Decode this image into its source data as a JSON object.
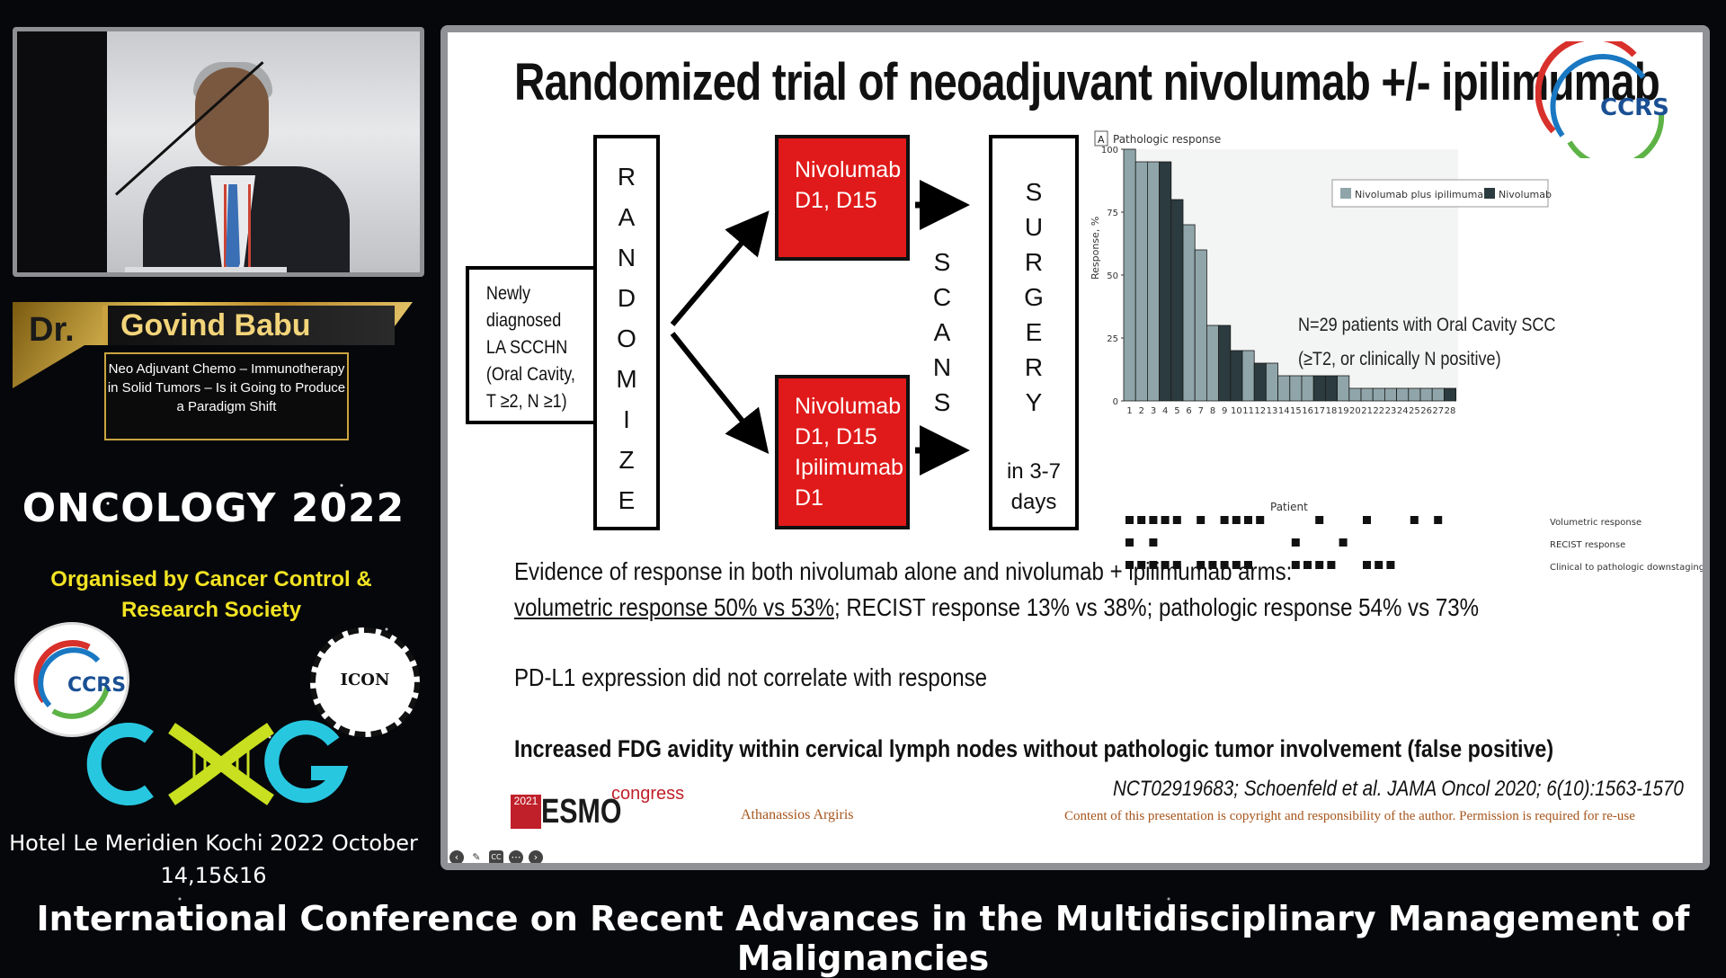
{
  "speaker": {
    "prefix": "Dr.",
    "name": "Govind Babu",
    "talk_title": "Neo Adjuvant Chemo – Immunotherapy in Solid Tumors – Is it Going to Produce a Paradigm Shift"
  },
  "event": {
    "name": "ONCOLOGY 2022",
    "organised_by": "Organised by   Cancer Control & Research Society",
    "logos": [
      "ccrs-logo",
      "icon-logo",
      "cxg-logo"
    ],
    "icon_logo_text": "ICON",
    "ccrs_text": "CCRS",
    "venue": "Hotel Le Meridien  Kochi  2022 October 14,15&16",
    "conference": "International Conference on Recent Advances in the Multidisciplinary Management of Malignancies"
  },
  "slide": {
    "title": "Randomized trial of neoadjuvant nivolumab +/- ipilimumab",
    "flow": {
      "newly_diagnosed": [
        "Newly",
        "diagnosed",
        "LA SCCHN",
        "(Oral Cavity,",
        "T ≥2, N ≥1)"
      ],
      "randomize_letters": [
        "R",
        "A",
        "N",
        "D",
        "O",
        "M",
        "I",
        "Z",
        "E"
      ],
      "arm1": [
        "Nivolumab",
        "D1, D15"
      ],
      "arm2": [
        "Nivolumab",
        "D1, D15",
        "Ipilimumab",
        "D1"
      ],
      "scans_letters": [
        "S",
        "C",
        "A",
        "N",
        "S"
      ],
      "surgery_letters": [
        "S",
        "U",
        "R",
        "G",
        "E",
        "R",
        "Y"
      ],
      "surgery_timing": [
        "in 3-7",
        "days"
      ]
    },
    "chart_label": "A",
    "chart_caption": "Pathologic response",
    "chart_note": [
      "N=29 patients with Oral Cavity SCC",
      "(≥T2, or clinically N positive)"
    ],
    "legend": [
      "Nivolumab plus ipilimumab",
      "Nivolumab"
    ],
    "response_rows": [
      "Volumetric response",
      "RECIST response",
      "Clinical to pathologic downstaging"
    ],
    "evidence_line1": "Evidence of response in both nivolumab alone and nivolumab + ipilimumab arms:",
    "evidence_line2a": "volumetric response 50% vs 53%",
    "evidence_line2b": "; RECIST response 13% vs 38%; ",
    "evidence_line2c": "pathologic response 54% vs 73%",
    "pdl1": "PD-L1 expression did not correlate with response",
    "fdg": "Increased FDG avidity within cervical lymph nodes without pathologic tumor involvement (false positive)",
    "citation": "NCT02919683; Schoenfeld et al. JAMA Oncol 2020; 6(10):1563-1570",
    "esmo_year": "2021",
    "esmo": "ESMO",
    "esmo_congress": "congress",
    "author": "Athanassios Argiris",
    "copyright": "Content of this presentation is copyright and responsibility of the author. Permission is required for re-use",
    "toolbar_icons": [
      "prev-icon",
      "pen-icon",
      "captions-icon",
      "more-icon",
      "next-icon"
    ]
  },
  "chart_data": {
    "type": "bar",
    "title": "Pathologic response",
    "xlabel": "Patient",
    "ylabel": "Response, %",
    "ylim": [
      0,
      100
    ],
    "yticks": [
      0,
      25,
      50,
      75,
      100
    ],
    "categories": [
      "1",
      "2",
      "3",
      "4",
      "5",
      "6",
      "7",
      "8",
      "9",
      "10",
      "11",
      "12",
      "13",
      "14",
      "15",
      "16",
      "17",
      "18",
      "19",
      "20",
      "21",
      "22",
      "23",
      "24",
      "25",
      "26",
      "27",
      "28"
    ],
    "values": [
      100,
      95,
      95,
      95,
      80,
      70,
      60,
      30,
      30,
      20,
      20,
      15,
      15,
      10,
      10,
      10,
      10,
      10,
      10,
      5,
      5,
      5,
      5,
      5,
      5,
      5,
      5,
      5
    ],
    "arm": [
      "combo",
      "combo",
      "combo",
      "nivo",
      "nivo",
      "combo",
      "combo",
      "combo",
      "nivo",
      "nivo",
      "combo",
      "nivo",
      "combo",
      "combo",
      "combo",
      "combo",
      "nivo",
      "nivo",
      "combo",
      "combo",
      "combo",
      "combo",
      "combo",
      "combo",
      "combo",
      "combo",
      "combo",
      "nivo"
    ],
    "colors": {
      "combo": "#8fa5a9",
      "nivo": "#2b3b3f"
    }
  }
}
